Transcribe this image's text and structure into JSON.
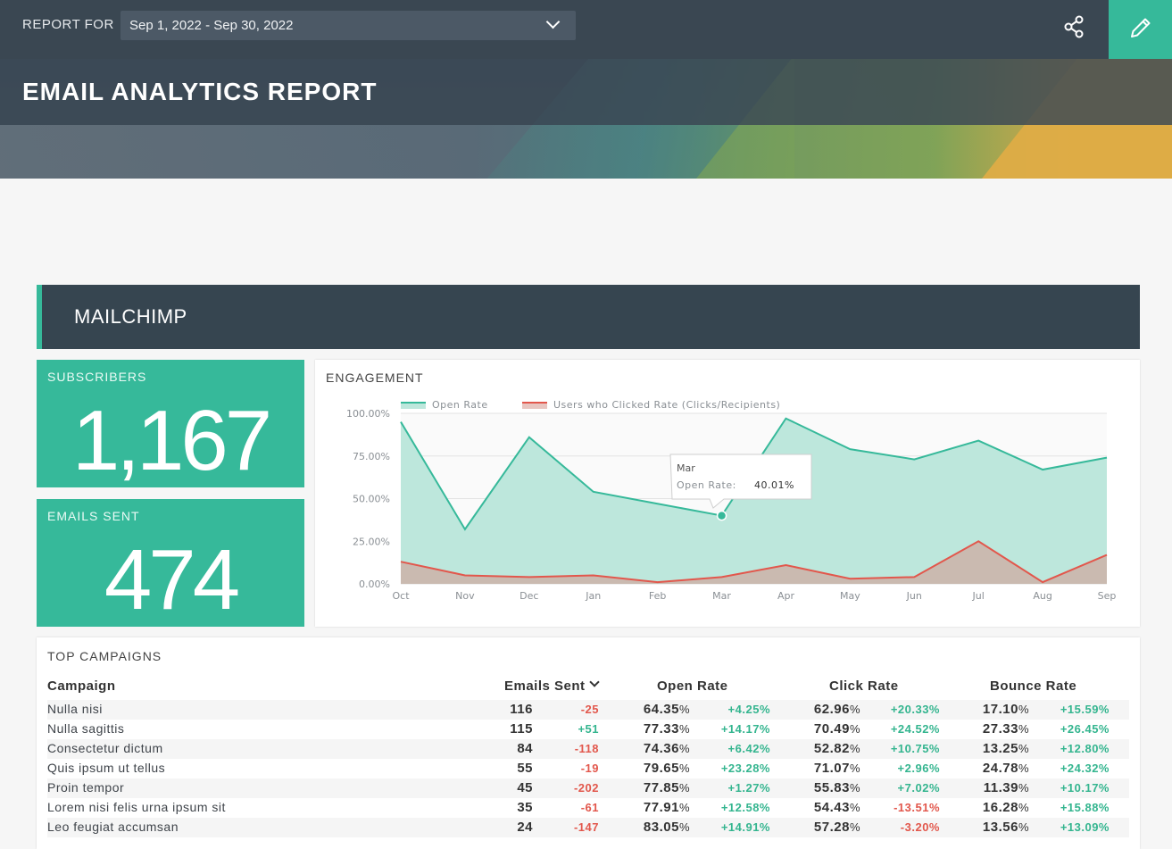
{
  "header": {
    "report_for_label": "REPORT FOR",
    "date_range": "Sep 1, 2022 - Sep 30, 2022",
    "title": "EMAIL ANALYTICS REPORT",
    "share_icon": "share-icon",
    "edit_icon": "pencil-icon",
    "accent_color": "#36b99a"
  },
  "section": {
    "title": "MAILCHIMP"
  },
  "kpis": {
    "subscribers": {
      "label": "SUBSCRIBERS",
      "value": "1,167"
    },
    "emails_sent": {
      "label": "EMAILS SENT",
      "value": "474"
    }
  },
  "engagement": {
    "title": "ENGAGEMENT",
    "tooltip": {
      "month": "Mar",
      "label": "Open Rate:",
      "value": "40.01%"
    }
  },
  "chart_data": {
    "type": "area",
    "title": "ENGAGEMENT",
    "x": [
      "Oct",
      "Nov",
      "Dec",
      "Jan",
      "Feb",
      "Mar",
      "Apr",
      "May",
      "Jun",
      "Jul",
      "Aug",
      "Sep"
    ],
    "y_ticks": [
      "100.00%",
      "75.00%",
      "50.00%",
      "25.00%",
      "0.00%"
    ],
    "ylim": [
      0,
      100
    ],
    "grid": true,
    "legend": "top-left",
    "series": [
      {
        "name": "Open Rate",
        "color": "#36b99a",
        "values": [
          95,
          32,
          86,
          54,
          47,
          40.01,
          97,
          79,
          73,
          84,
          67,
          74
        ]
      },
      {
        "name": "Users who Clicked Rate (Clicks/Recipients)",
        "color": "#e2574c",
        "values": [
          13,
          5,
          4,
          5,
          1,
          4,
          11,
          3,
          4,
          25,
          1,
          17
        ]
      }
    ]
  },
  "campaigns": {
    "title": "TOP CAMPAIGNS",
    "headers": {
      "campaign": "Campaign",
      "emails_sent": "Emails Sent",
      "open_rate": "Open Rate",
      "click_rate": "Click Rate",
      "bounce_rate": "Bounce Rate"
    },
    "rows": [
      {
        "name": "Nulla nisi",
        "sent": "116",
        "sent_d": "-25",
        "open": "64.35",
        "open_d": "+4.25%",
        "click": "62.96",
        "click_d": "+20.33%",
        "bounce": "17.10",
        "bounce_d": "+15.59%"
      },
      {
        "name": "Nulla sagittis",
        "sent": "115",
        "sent_d": "+51",
        "open": "77.33",
        "open_d": "+14.17%",
        "click": "70.49",
        "click_d": "+24.52%",
        "bounce": "27.33",
        "bounce_d": "+26.45%"
      },
      {
        "name": "Consectetur dictum",
        "sent": "84",
        "sent_d": "-118",
        "open": "74.36",
        "open_d": "+6.42%",
        "click": "52.82",
        "click_d": "+10.75%",
        "bounce": "13.25",
        "bounce_d": "+12.80%"
      },
      {
        "name": "Quis ipsum ut tellus",
        "sent": "55",
        "sent_d": "-19",
        "open": "79.65",
        "open_d": "+23.28%",
        "click": "71.07",
        "click_d": "+2.96%",
        "bounce": "24.78",
        "bounce_d": "+24.32%"
      },
      {
        "name": "Proin tempor",
        "sent": "45",
        "sent_d": "-202",
        "open": "77.85",
        "open_d": "+1.27%",
        "click": "55.83",
        "click_d": "+7.02%",
        "bounce": "11.39",
        "bounce_d": "+10.17%"
      },
      {
        "name": "Lorem nisi felis urna ipsum sit",
        "sent": "35",
        "sent_d": "-61",
        "open": "77.91",
        "open_d": "+12.58%",
        "click": "54.43",
        "click_d": "-13.51%",
        "bounce": "16.28",
        "bounce_d": "+15.88%"
      },
      {
        "name": "Leo feugiat accumsan",
        "sent": "24",
        "sent_d": "-147",
        "open": "83.05",
        "open_d": "+14.91%",
        "click": "57.28",
        "click_d": "-3.20%",
        "bounce": "13.56",
        "bounce_d": "+13.09%"
      }
    ]
  }
}
